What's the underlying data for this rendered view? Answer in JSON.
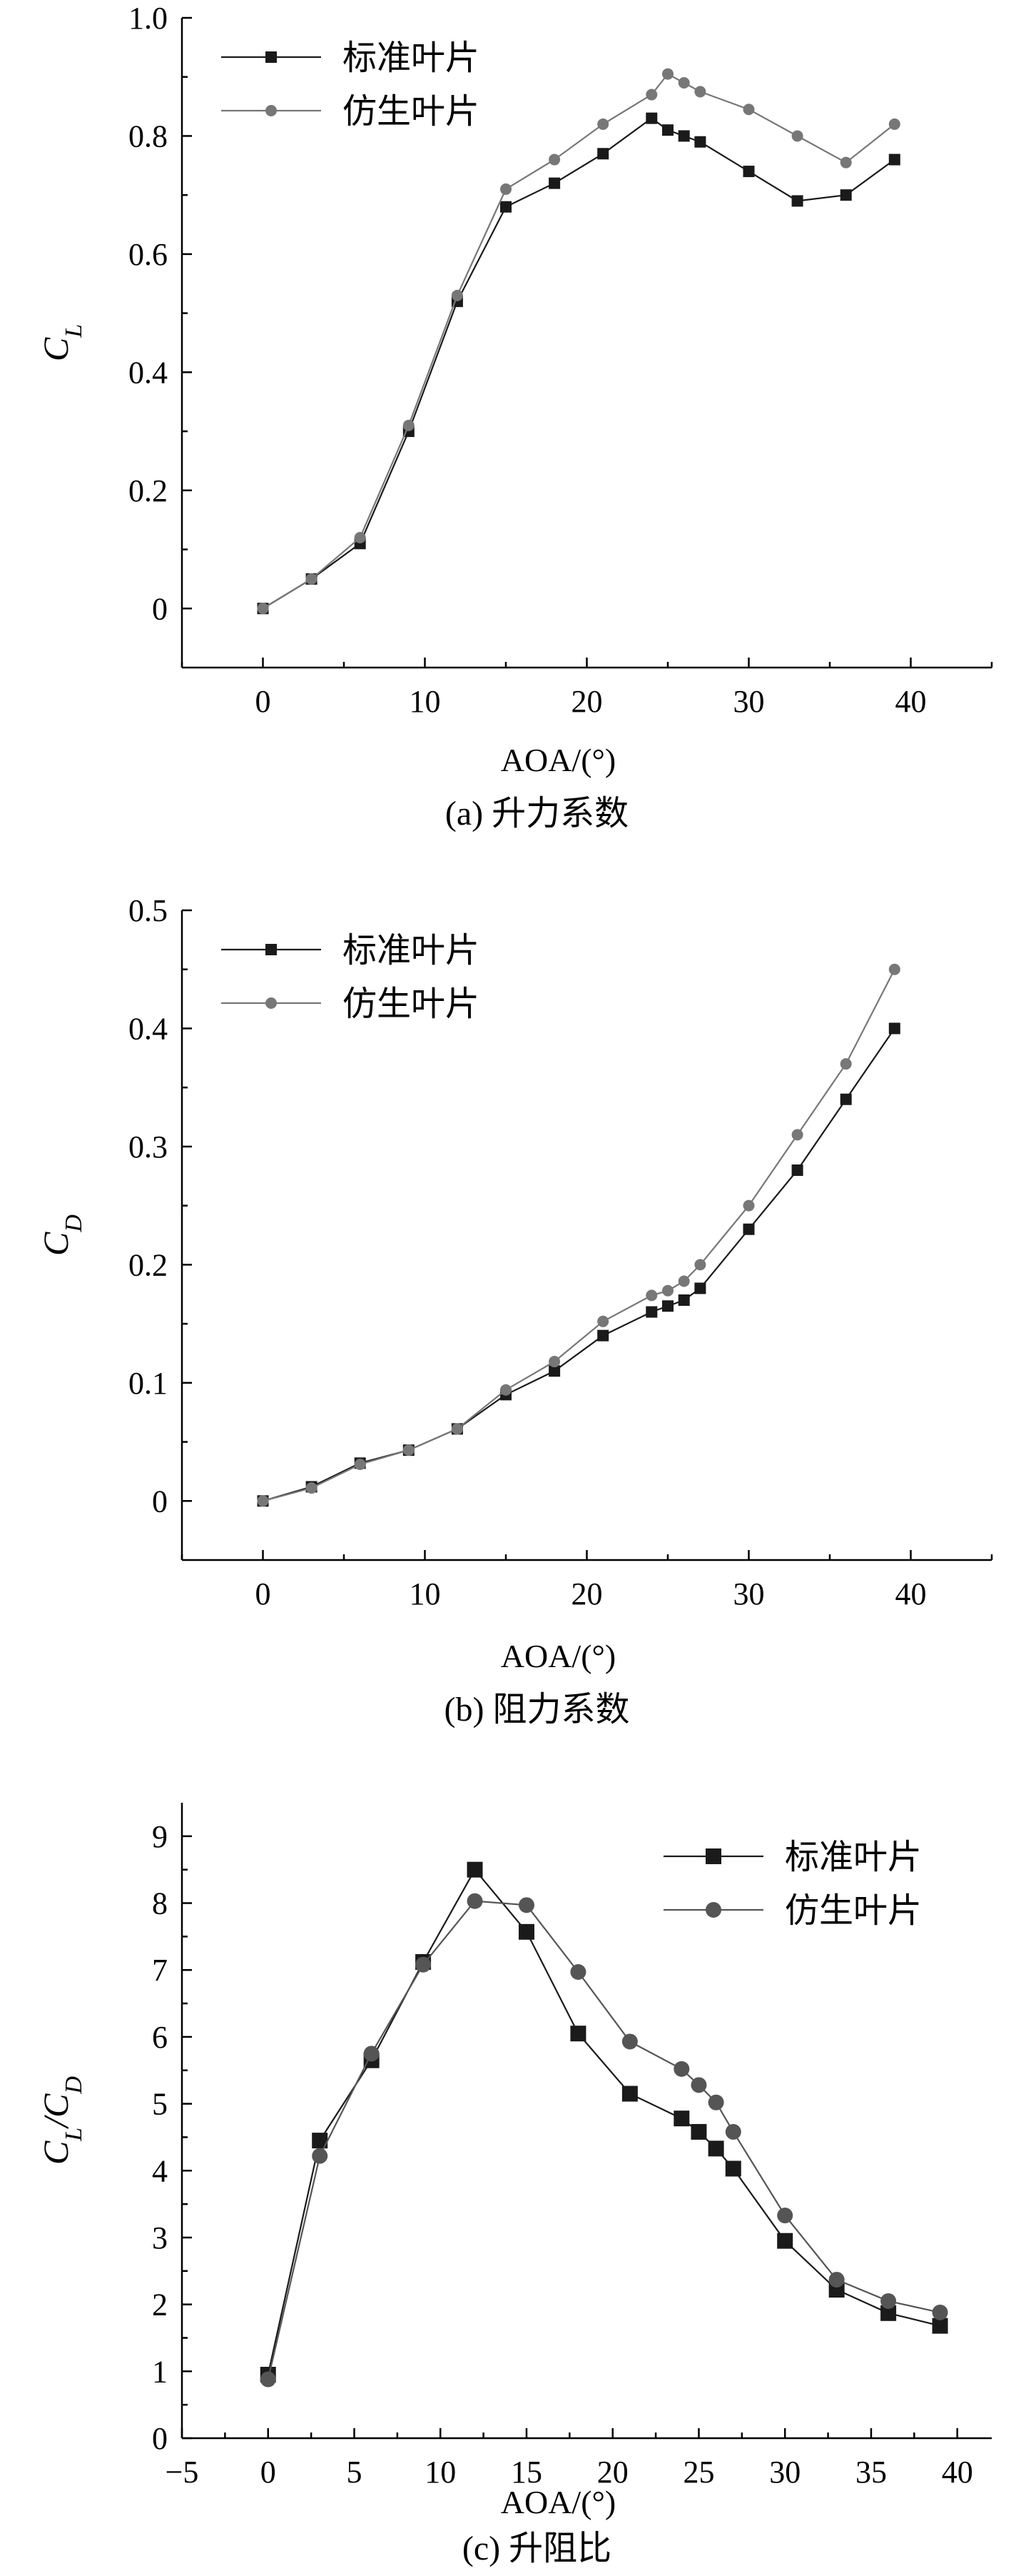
{
  "chart_data": [
    {
      "type": "line",
      "caption": "(a) 升力系数",
      "ylabel": "C",
      "ylabel_sub": "L",
      "xlabel": "AOA/(°)",
      "xlim": [
        -5,
        45
      ],
      "ylim": [
        -0.1,
        1.0
      ],
      "xticks": [
        0,
        10,
        20,
        30,
        40
      ],
      "yticks": [
        0,
        0.2,
        0.4,
        0.6,
        0.8,
        1.0
      ],
      "ytick_labels": [
        "0",
        "0.2",
        "0.4",
        "0.6",
        "0.8",
        "1.0"
      ],
      "legend_position": "top-left",
      "series": [
        {
          "name": "标准叶片",
          "marker": "square",
          "color": "#1a1a1a",
          "x": [
            0,
            3,
            6,
            9,
            12,
            15,
            18,
            21,
            24,
            25,
            26,
            27,
            30,
            33,
            36,
            39
          ],
          "y": [
            0,
            0.05,
            0.11,
            0.3,
            0.52,
            0.68,
            0.72,
            0.77,
            0.83,
            0.81,
            0.8,
            0.79,
            0.74,
            0.69,
            0.7,
            0.76
          ]
        },
        {
          "name": "仿生叶片",
          "marker": "circle",
          "color": "#777777",
          "x": [
            0,
            3,
            6,
            9,
            12,
            15,
            18,
            21,
            24,
            25,
            26,
            27,
            30,
            33,
            36,
            39
          ],
          "y": [
            0,
            0.05,
            0.12,
            0.31,
            0.53,
            0.71,
            0.76,
            0.82,
            0.87,
            0.905,
            0.89,
            0.875,
            0.845,
            0.8,
            0.755,
            0.82
          ]
        }
      ]
    },
    {
      "type": "line",
      "caption": "(b) 阻力系数",
      "ylabel": "C",
      "ylabel_sub": "D",
      "xlabel": "AOA/(°)",
      "xlim": [
        -5,
        45
      ],
      "ylim": [
        -0.05,
        0.5
      ],
      "xticks": [
        0,
        10,
        20,
        30,
        40
      ],
      "yticks": [
        0,
        0.1,
        0.2,
        0.3,
        0.4,
        0.5
      ],
      "ytick_labels": [
        "0",
        "0.1",
        "0.2",
        "0.3",
        "0.4",
        "0.5"
      ],
      "legend_position": "top-left",
      "series": [
        {
          "name": "标准叶片",
          "marker": "square",
          "color": "#1a1a1a",
          "x": [
            0,
            3,
            6,
            9,
            12,
            15,
            18,
            21,
            24,
            25,
            26,
            27,
            30,
            33,
            36,
            39
          ],
          "y": [
            0,
            0.012,
            0.032,
            0.043,
            0.061,
            0.09,
            0.11,
            0.14,
            0.16,
            0.165,
            0.17,
            0.18,
            0.23,
            0.28,
            0.34,
            0.4
          ]
        },
        {
          "name": "仿生叶片",
          "marker": "circle",
          "color": "#777777",
          "x": [
            0,
            3,
            6,
            9,
            12,
            15,
            18,
            21,
            24,
            25,
            26,
            27,
            30,
            33,
            36,
            39
          ],
          "y": [
            0,
            0.011,
            0.031,
            0.043,
            0.061,
            0.094,
            0.118,
            0.152,
            0.174,
            0.178,
            0.186,
            0.2,
            0.25,
            0.31,
            0.37,
            0.45
          ]
        }
      ]
    },
    {
      "type": "line",
      "caption": "(c) 升阻比",
      "ylabel": "C",
      "ylabel_sub": "L",
      "ylabel_mid": "/C",
      "ylabel_sub2": "D",
      "xlabel": "AOA/(°)",
      "xlim": [
        -5,
        42
      ],
      "ylim": [
        0,
        9.5
      ],
      "xticks": [
        -5,
        0,
        5,
        10,
        15,
        20,
        25,
        30,
        35,
        40
      ],
      "xtick_labels": [
        "−5",
        "0",
        "5",
        "10",
        "15",
        "20",
        "25",
        "30",
        "35",
        "40"
      ],
      "yticks": [
        0,
        1,
        2,
        3,
        4,
        5,
        6,
        7,
        8,
        9
      ],
      "ytick_labels": [
        "0",
        "1",
        "2",
        "3",
        "4",
        "5",
        "6",
        "7",
        "8",
        "9"
      ],
      "legend_position": "top-right",
      "series": [
        {
          "name": "标准叶片",
          "marker": "square",
          "color": "#1a1a1a",
          "x": [
            0,
            3,
            6,
            9,
            12,
            15,
            18,
            21,
            24,
            25,
            26,
            27,
            30,
            33,
            36,
            39
          ],
          "y": [
            0.95,
            4.45,
            5.65,
            7.12,
            8.5,
            7.57,
            6.05,
            5.15,
            4.78,
            4.58,
            4.33,
            4.03,
            2.95,
            2.22,
            1.87,
            1.68
          ]
        },
        {
          "name": "仿生叶片",
          "marker": "circle",
          "color": "#555555",
          "x": [
            0,
            3,
            6,
            9,
            12,
            15,
            18,
            21,
            24,
            25,
            26,
            27,
            30,
            33,
            36,
            39
          ],
          "y": [
            0.88,
            4.22,
            5.75,
            7.08,
            8.03,
            7.97,
            6.97,
            5.93,
            5.52,
            5.28,
            5.02,
            4.58,
            3.33,
            2.37,
            2.05,
            1.88
          ]
        }
      ]
    }
  ]
}
